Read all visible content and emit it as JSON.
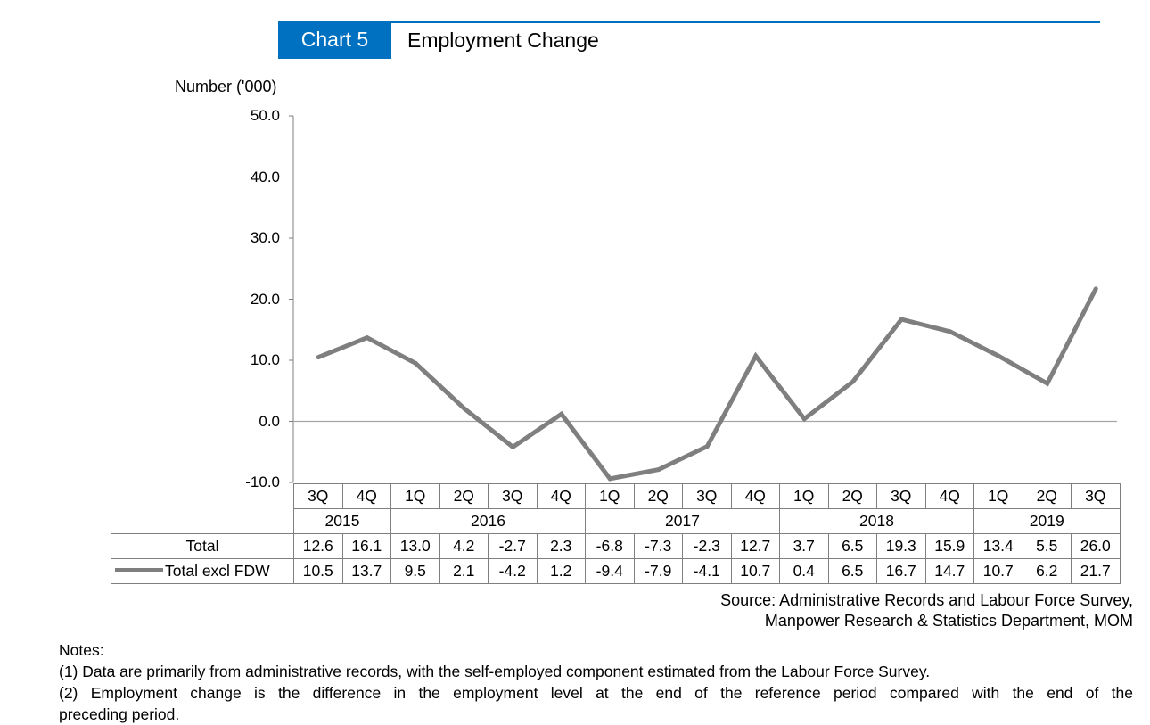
{
  "header": {
    "badge": "Chart 5",
    "title": "Employment Change"
  },
  "colors": {
    "accent": "#0070c0",
    "series_line": "#7f7f7f",
    "zero_line": "#a6a6a6"
  },
  "chart_data": {
    "type": "line",
    "title": "Employment Change",
    "ylabel": "Number ('000)",
    "ylim": [
      -10,
      50
    ],
    "yticks": [
      "50.0",
      "40.0",
      "30.0",
      "20.0",
      "10.0",
      "0.0",
      "-10.0"
    ],
    "grid": false,
    "categories": [
      "3Q",
      "4Q",
      "1Q",
      "2Q",
      "3Q",
      "4Q",
      "1Q",
      "2Q",
      "3Q",
      "4Q",
      "1Q",
      "2Q",
      "3Q",
      "4Q",
      "1Q",
      "2Q",
      "3Q"
    ],
    "years": [
      {
        "label": "2015",
        "span": 2
      },
      {
        "label": "2016",
        "span": 4
      },
      {
        "label": "2017",
        "span": 4
      },
      {
        "label": "2018",
        "span": 4
      },
      {
        "label": "2019",
        "span": 3
      }
    ],
    "series": [
      {
        "name": "Total",
        "plotted": false,
        "labels": [
          "12.6",
          "16.1",
          "13.0",
          "4.2",
          "-2.7",
          "2.3",
          "-6.8",
          "-7.3",
          "-2.3",
          "12.7",
          "3.7",
          "6.5",
          "19.3",
          "15.9",
          "13.4",
          "5.5",
          "26.0"
        ]
      },
      {
        "name": "Total excl FDW",
        "plotted": true,
        "values": [
          10.5,
          13.7,
          9.5,
          2.1,
          -4.2,
          1.2,
          -9.4,
          -7.9,
          -4.1,
          10.7,
          0.4,
          6.5,
          16.7,
          14.7,
          10.7,
          6.2,
          21.7
        ],
        "labels": [
          "10.5",
          "13.7",
          "9.5",
          "2.1",
          "-4.2",
          "1.2",
          "-9.4",
          "-7.9",
          "-4.1",
          "10.7",
          "0.4",
          "6.5",
          "16.7",
          "14.7",
          "10.7",
          "6.2",
          "21.7"
        ]
      }
    ]
  },
  "source": {
    "line1": "Source: Administrative Records and Labour Force Survey,",
    "line2": "Manpower Research & Statistics Department, MOM"
  },
  "notes": {
    "heading": "Notes:",
    "items": [
      "(1)  Data are primarily from administrative records, with the self-employed component estimated from the Labour Force Survey.",
      "(2)  Employment change is the difference in the employment level at the end of the reference period compared with the end of the",
      "preceding period."
    ]
  }
}
